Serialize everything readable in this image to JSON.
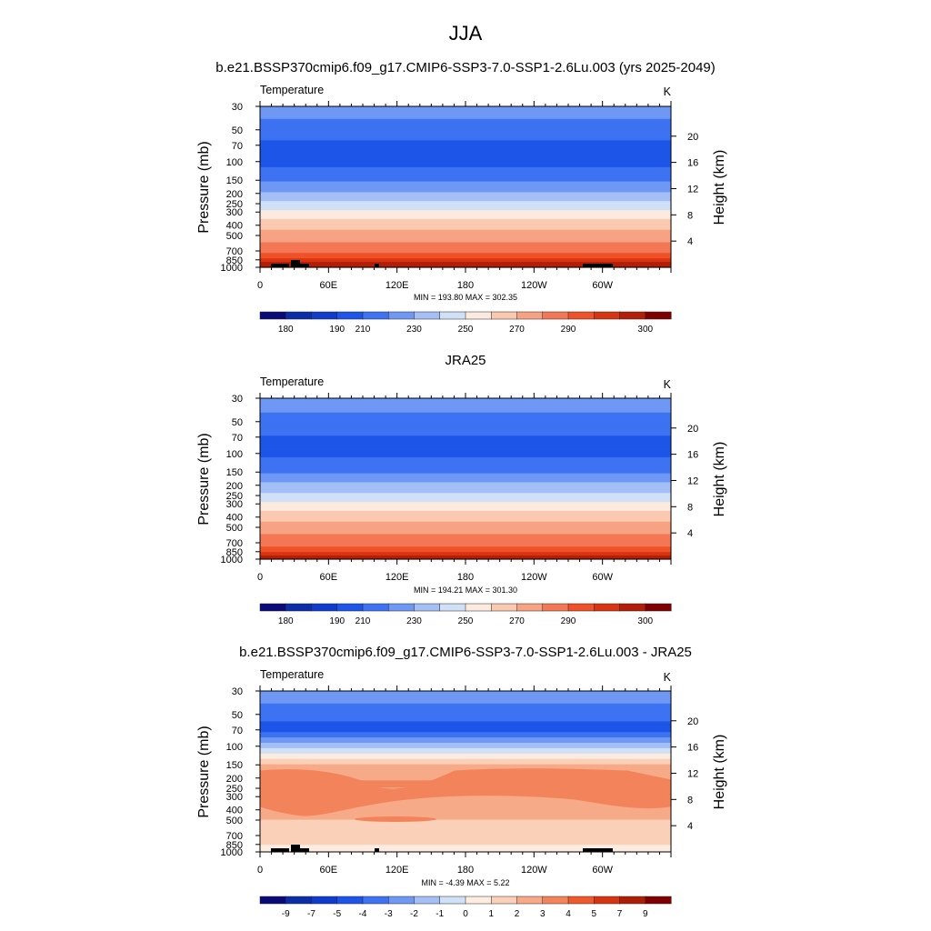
{
  "figure": {
    "title": "JJA"
  },
  "colors": {
    "temperature_scale": [
      "#0a0a78",
      "#0b2da8",
      "#0f3ccc",
      "#1c55e8",
      "#3d72f2",
      "#6f98f5",
      "#a3bff6",
      "#cfe0f7",
      "#fce9df",
      "#fbc8b0",
      "#f7a283",
      "#f47755",
      "#ef5128",
      "#d93412",
      "#b21e08",
      "#7f0000"
    ],
    "difference_scale": [
      "#0a0a78",
      "#0b2da8",
      "#0f3ccc",
      "#1c55e8",
      "#3d72f2",
      "#6f98f5",
      "#a3bff6",
      "#cfe0f7",
      "#fdecdf",
      "#fbd0b8",
      "#f7aa88",
      "#f3835a",
      "#ee5a2c",
      "#d63512",
      "#ac1e08",
      "#7f0000"
    ]
  },
  "chart_data": [
    {
      "type": "heatmap",
      "title": "b.e21.BSSP370cmip6.f09_g17.CMIP6-SSP3-7.0-SSP1-2.6Lu.003 (yrs 2025-2049)",
      "variable": "Temperature",
      "units": "K",
      "ylabel": "Pressure (mb)",
      "ylabel_right": "Height (km)",
      "x_ticks": [
        "0",
        "60E",
        "120E",
        "180",
        "120W",
        "60W"
      ],
      "y_ticks": [
        "30",
        "50",
        "70",
        "100",
        "150",
        "200",
        "250",
        "300",
        "400",
        "500",
        "700",
        "850",
        "1000"
      ],
      "height_ticks": [
        "20",
        "16",
        "12",
        "8",
        "4"
      ],
      "stats": "MIN = 193.80  MAX = 302.35",
      "colorbar_labels": [
        "180",
        "190",
        "210",
        "230",
        "250",
        "270",
        "290",
        "300"
      ],
      "level_values": {
        "30": 215,
        "50": 205,
        "70": 198,
        "100": 197,
        "150": 208,
        "200": 222,
        "250": 232,
        "300": 242,
        "400": 256,
        "500": 264,
        "700": 278,
        "850": 287,
        "1000": 295
      }
    },
    {
      "type": "heatmap",
      "title": "JRA25",
      "variable": "Temperature",
      "units": "K",
      "ylabel": "Pressure (mb)",
      "ylabel_right": "Height (km)",
      "x_ticks": [
        "0",
        "60E",
        "120E",
        "180",
        "120W",
        "60W"
      ],
      "y_ticks": [
        "30",
        "50",
        "70",
        "100",
        "150",
        "200",
        "250",
        "300",
        "400",
        "500",
        "700",
        "850",
        "1000"
      ],
      "height_ticks": [
        "20",
        "16",
        "12",
        "8",
        "4"
      ],
      "stats": "MIN = 194.21  MAX = 301.30",
      "colorbar_labels": [
        "180",
        "190",
        "210",
        "230",
        "250",
        "270",
        "290",
        "300"
      ],
      "level_values": {
        "30": 216,
        "50": 206,
        "70": 199,
        "100": 198,
        "150": 209,
        "200": 223,
        "250": 233,
        "300": 243,
        "400": 256,
        "500": 264,
        "700": 277,
        "850": 285,
        "1000": 293
      }
    },
    {
      "type": "heatmap",
      "title": "b.e21.BSSP370cmip6.f09_g17.CMIP6-SSP3-7.0-SSP1-2.6Lu.003 - JRA25",
      "variable": "Temperature",
      "units": "K",
      "ylabel": "Pressure (mb)",
      "ylabel_right": "Height (km)",
      "x_ticks": [
        "0",
        "60E",
        "120E",
        "180",
        "120W",
        "60W"
      ],
      "y_ticks": [
        "30",
        "50",
        "70",
        "100",
        "150",
        "200",
        "250",
        "300",
        "400",
        "500",
        "700",
        "850",
        "1000"
      ],
      "height_ticks": [
        "20",
        "16",
        "12",
        "8",
        "4"
      ],
      "stats": "MIN =  -4.39  MAX =   5.22",
      "colorbar_labels": [
        "-9",
        "-7",
        "-5",
        "-4",
        "-3",
        "-2",
        "-1",
        "0",
        "1",
        "2",
        "3",
        "4",
        "5",
        "7",
        "9"
      ],
      "level_values": {
        "30": -2,
        "50": -3,
        "70": -4,
        "100": -1,
        "150": 2.5,
        "200": 3.5,
        "250": 3.5,
        "300": 3,
        "400": 2.5,
        "500": 2.5,
        "700": 2,
        "850": 1.5,
        "1000": 0.5
      }
    }
  ]
}
